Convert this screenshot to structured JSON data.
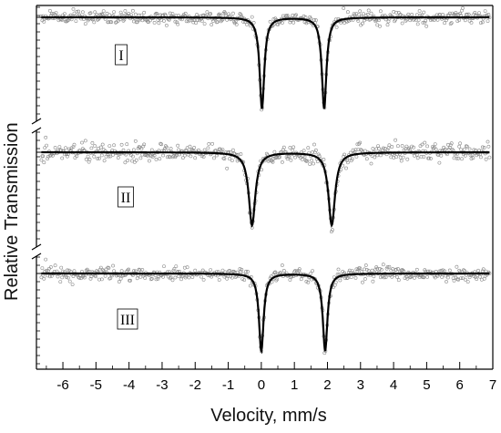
{
  "chart_data": {
    "type": "scatter",
    "xlabel": "Velocity, mm/s",
    "ylabel": "Relative Transmission",
    "xlim": [
      -6.8,
      7.0
    ],
    "x_ticks": [
      -6,
      -5,
      -4,
      -3,
      -2,
      -1,
      0,
      1,
      2,
      3,
      4,
      5,
      6,
      7
    ],
    "grid": false,
    "legend": "none",
    "colors": {
      "fit_line": "#000000",
      "points": "#888888",
      "axis": "#000000"
    },
    "panels": [
      {
        "label": "I",
        "peaks": [
          0.02,
          1.9
        ],
        "depth": 0.95,
        "width": 0.085,
        "noise": 0.035
      },
      {
        "label": "II",
        "peaks": [
          -0.28,
          2.13
        ],
        "depth": 0.55,
        "width": 0.12,
        "noise": 0.06
      },
      {
        "label": "III",
        "peaks": [
          0.0,
          1.93
        ],
        "depth": 0.85,
        "width": 0.085,
        "noise": 0.045
      }
    ]
  }
}
